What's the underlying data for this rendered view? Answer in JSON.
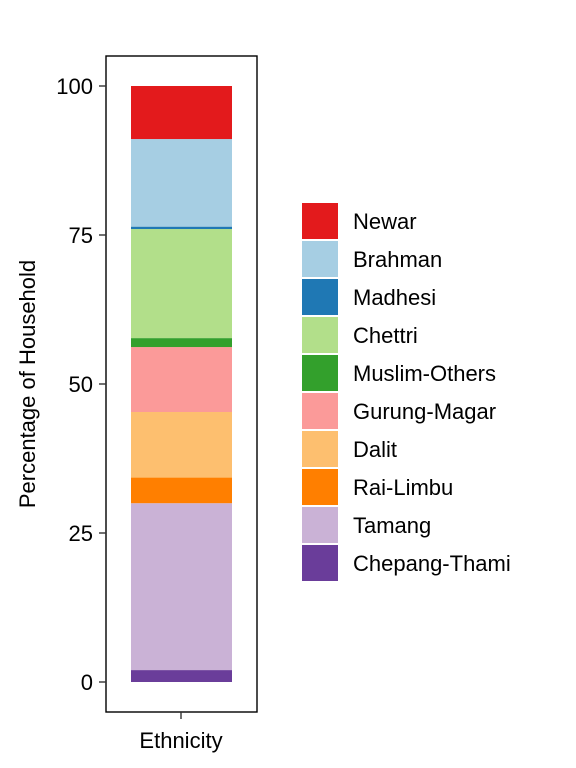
{
  "chart_data": {
    "type": "bar",
    "stacked": true,
    "categories": [
      "Ethnicity"
    ],
    "xlabel": "Ethnicity",
    "ylabel": "Percentage of Household",
    "ylim": [
      0,
      100
    ],
    "yticks": [
      "0",
      "25",
      "50",
      "75",
      "100"
    ],
    "legend_position": "right",
    "grid": false,
    "series": [
      {
        "name": "Chepang-Thami",
        "value": 2.0,
        "color": "#6A3D9A"
      },
      {
        "name": "Tamang",
        "value": 28.0,
        "color": "#CAB2D6"
      },
      {
        "name": "Rai-Limbu",
        "value": 4.3,
        "color": "#FF7F00"
      },
      {
        "name": "Dalit",
        "value": 11.0,
        "color": "#FDBF6F"
      },
      {
        "name": "Gurung-Magar",
        "value": 10.9,
        "color": "#FB9A99"
      },
      {
        "name": "Muslim-Others",
        "value": 1.5,
        "color": "#33A02C"
      },
      {
        "name": "Chettri",
        "value": 18.3,
        "color": "#B2DF8A"
      },
      {
        "name": "Madhesi",
        "value": 0.4,
        "color": "#1F78B4"
      },
      {
        "name": "Brahman",
        "value": 14.7,
        "color": "#A6CEE3"
      },
      {
        "name": "Newar",
        "value": 8.9,
        "color": "#E31A1C"
      }
    ]
  }
}
